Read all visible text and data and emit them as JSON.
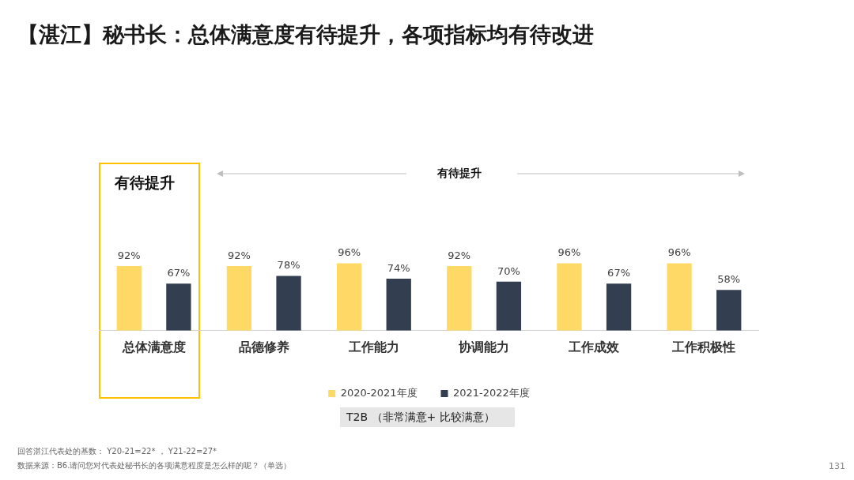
{
  "chart_data": {
    "type": "bar",
    "title": "【湛江】秘书长：总体满意度有待提升，各项指标均有待改进",
    "categories": [
      "总体满意度",
      "品德修养",
      "工作能力",
      "协调能力",
      "工作成效",
      "工作积极性"
    ],
    "series": [
      {
        "name": "2020-2021年度",
        "color": "#ffd966",
        "values": [
          92,
          92,
          96,
          92,
          96,
          96
        ],
        "value_labels": [
          "92%",
          "92%",
          "96%",
          "92%",
          "96%",
          "96%"
        ]
      },
      {
        "name": "2021-2022年度",
        "color": "#333f50",
        "values": [
          67,
          78,
          74,
          70,
          67,
          58
        ],
        "value_labels": [
          "67%",
          "78%",
          "74%",
          "70%",
          "67%",
          "58%"
        ]
      }
    ],
    "tick_labels": "x",
    "legend": "bottom",
    "grid": false,
    "annotations": [
      "有待提升",
      "有待提升",
      "T2B （非常满意+ 比较满意）",
      "回答湛江代表处的基数： Y20-21=22* ， Y21-22=27*",
      "数据来源：B6.请问您对代表处秘书长的各项满意程度是怎么样的呢？（单选）",
      "131"
    ]
  }
}
